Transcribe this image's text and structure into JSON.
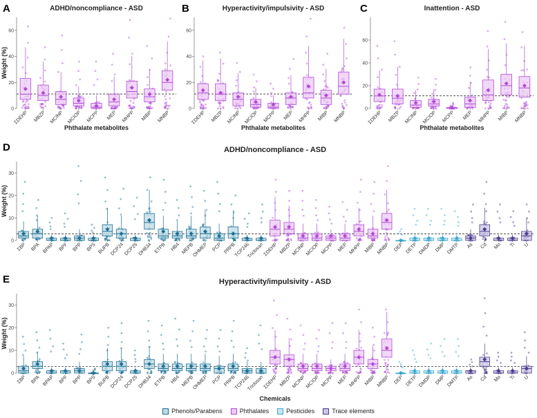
{
  "groups": [
    {
      "name": "Phenols/Parabens",
      "color": "#1a6e94",
      "fill": "#bfdbe6"
    },
    {
      "name": "Phthalates",
      "color": "#b14ad6",
      "fill": "#ecc9f5"
    },
    {
      "name": "Pesticides",
      "color": "#3aa8d2",
      "fill": "#c4e6f2"
    },
    {
      "name": "Trace elements",
      "color": "#4b3a8c",
      "fill": "#cbc5e4"
    }
  ],
  "chart_data": [
    {
      "panel": "A",
      "type": "boxplot",
      "title": "ADHD/noncompliance - ASD",
      "xlabel": "Phthalate metabolites",
      "ylabel": "Weight (%)",
      "ylim": [
        0,
        70
      ],
      "yticks": [
        0,
        20,
        40,
        60
      ],
      "reference_line": 11.1,
      "categories": [
        "ΣDEHP",
        "MBZP",
        "MCINP",
        "MCIOP",
        "MCPP",
        "MEP",
        "MHPP",
        "MIBP",
        "MNBP"
      ],
      "group": [
        1,
        1,
        1,
        1,
        1,
        1,
        1,
        1,
        1
      ],
      "q1": [
        7,
        6,
        3,
        2,
        0,
        2,
        8,
        5,
        14
      ],
      "median": [
        11,
        10,
        7,
        4,
        1,
        5,
        13,
        9,
        20
      ],
      "q3": [
        23,
        18,
        13,
        8,
        4,
        11,
        21,
        15,
        29
      ],
      "mean": [
        15,
        12,
        9,
        6,
        2,
        7,
        16,
        11,
        22
      ],
      "max": [
        63,
        47,
        56,
        36,
        36,
        42,
        68,
        48,
        69
      ]
    },
    {
      "panel": "B",
      "type": "boxplot",
      "title": "Hyperactivity/impulsivity - ASD",
      "xlabel": "Phthalate metabolites",
      "ylabel": "",
      "ylim": [
        0,
        70
      ],
      "yticks": [
        0,
        20,
        40,
        60
      ],
      "reference_line": 11.1,
      "categories": [
        "ΣDEHP",
        "MBZP",
        "MCINP",
        "MCIOP",
        "MCPP",
        "MEP",
        "MHPP",
        "MIBP",
        "MNBP"
      ],
      "group": [
        1,
        1,
        1,
        1,
        1,
        1,
        1,
        1,
        1
      ],
      "q1": [
        7,
        6,
        2,
        1,
        0,
        3,
        8,
        3,
        11
      ],
      "median": [
        12,
        11,
        7,
        3,
        1,
        8,
        12,
        8,
        17
      ],
      "q3": [
        19,
        19,
        12,
        7,
        4,
        12,
        24,
        14,
        28
      ],
      "mean": [
        14,
        12,
        9,
        5,
        3,
        9,
        17,
        10,
        20
      ],
      "max": [
        40,
        43,
        35,
        26,
        19,
        38,
        69,
        42,
        62
      ]
    },
    {
      "panel": "C",
      "type": "boxplot",
      "title": "Inattention - ASD",
      "xlabel": "Phthalate metabolites",
      "ylabel": "",
      "ylim": [
        0,
        80
      ],
      "yticks": [
        0,
        20,
        40,
        60
      ],
      "reference_line": 11.1,
      "categories": [
        "ΣDEHP",
        "MBZP",
        "MCINP",
        "MCIOP",
        "MCPP",
        "MEP",
        "MHPP",
        "MIBP",
        "MNBP"
      ],
      "group": [
        1,
        1,
        1,
        1,
        1,
        1,
        1,
        1,
        1
      ],
      "q1": [
        6,
        4,
        1,
        2,
        0,
        1,
        7,
        12,
        10
      ],
      "median": [
        11,
        9,
        3,
        4,
        0,
        4,
        12,
        20,
        18
      ],
      "q3": [
        17,
        17,
        7,
        8,
        1,
        10,
        25,
        30,
        28
      ],
      "mean": [
        12,
        11,
        5,
        6,
        1,
        7,
        16,
        22,
        20
      ],
      "max": [
        55,
        59,
        27,
        26,
        5,
        36,
        68,
        76,
        67
      ]
    },
    {
      "panel": "D",
      "type": "boxplot",
      "title": "ADHD/noncompliance - ASD",
      "xlabel": "",
      "ylabel": "Weight (%)",
      "ylim": [
        0,
        35
      ],
      "yticks": [
        0,
        10,
        20,
        30
      ],
      "reference_line": 2.9,
      "categories": [
        "ΣBP",
        "BPA",
        "BPAP",
        "BPF",
        "BPP",
        "BPS",
        "BUPB",
        "DCP24",
        "DCP25",
        "DHB34",
        "ETPB",
        "HB4",
        "MEPB",
        "OHMEP",
        "PCP",
        "PRPB",
        "TCP246",
        "Triclosan",
        "ΣDEHP",
        "MBZP",
        "MCINP",
        "MCIOP",
        "MCPP",
        "MEP",
        "MHPP",
        "MIBP",
        "MNBP",
        "DEP",
        "DETP",
        "DMDP",
        "DMP",
        "DMTP",
        "As",
        "Cd",
        "Mo",
        "Ti",
        "U"
      ],
      "group": [
        0,
        0,
        0,
        0,
        0,
        0,
        0,
        0,
        0,
        0,
        0,
        0,
        0,
        0,
        0,
        0,
        0,
        0,
        1,
        1,
        1,
        1,
        1,
        1,
        1,
        1,
        1,
        2,
        2,
        2,
        2,
        2,
        3,
        3,
        3,
        3,
        3
      ],
      "q1": [
        1,
        1,
        0,
        0,
        0,
        0,
        2,
        1,
        0,
        5,
        1,
        1,
        1,
        1,
        0,
        1,
        0,
        0,
        2,
        3,
        0,
        0,
        0,
        0,
        2,
        1,
        5,
        0,
        0,
        0,
        0,
        0,
        0,
        2,
        0,
        0,
        0
      ],
      "median": [
        2,
        3,
        0,
        0,
        1,
        0,
        4,
        3,
        0,
        8,
        2,
        2,
        2,
        3,
        1,
        3,
        0,
        0,
        5,
        5,
        1,
        1,
        1,
        1,
        4,
        2,
        8,
        0,
        0,
        0,
        0,
        0,
        1,
        4,
        0,
        0,
        2
      ],
      "q3": [
        4,
        5,
        1,
        1,
        2,
        1,
        7,
        5,
        1,
        12,
        5,
        4,
        5,
        6,
        3,
        6,
        1,
        1,
        9,
        8,
        3,
        3,
        2,
        3,
        7,
        5,
        12,
        0,
        1,
        1,
        1,
        1,
        2,
        7,
        1,
        1,
        4
      ],
      "mean": [
        3,
        4,
        1,
        1,
        1,
        1,
        5,
        3,
        1,
        9,
        4,
        3,
        3,
        4,
        2,
        3,
        1,
        1,
        6,
        6,
        2,
        2,
        2,
        2,
        5,
        3,
        9,
        0,
        1,
        1,
        1,
        1,
        1,
        5,
        1,
        1,
        3
      ],
      "max": [
        26,
        18,
        10,
        12,
        33,
        7,
        28,
        23,
        19,
        28,
        27,
        18,
        24,
        22,
        26,
        20,
        12,
        16,
        27,
        22,
        22,
        18,
        15,
        17,
        27,
        26,
        33,
        5,
        14,
        14,
        14,
        13,
        16,
        26,
        16,
        13,
        16
      ]
    },
    {
      "panel": "E",
      "type": "boxplot",
      "title": "Hyperactivity/impulsivity - ASD",
      "xlabel": "Chemicals",
      "ylabel": "Weight (%)",
      "ylim": [
        0,
        35
      ],
      "yticks": [
        0,
        10,
        20,
        30
      ],
      "reference_line": 2.9,
      "categories": [
        "ΣBP",
        "BPA",
        "BPAP",
        "BPF",
        "BPP",
        "BPS",
        "BUPB",
        "DCP24",
        "DCP25",
        "DHB34",
        "ETPB",
        "HB4",
        "MEPB",
        "OHMEP",
        "PCP",
        "PRPB",
        "TCP246",
        "Triclosan",
        "ΣDEHP",
        "MBZP",
        "MCINP",
        "MCIOP",
        "MCPP",
        "MEP",
        "MHPP",
        "MIBP",
        "MNBP",
        "DEP",
        "DETP",
        "DMDP",
        "DMP",
        "DMTP",
        "As",
        "Cd",
        "Mo",
        "Ti",
        "U"
      ],
      "group": [
        0,
        0,
        0,
        0,
        0,
        0,
        0,
        0,
        0,
        0,
        0,
        0,
        0,
        0,
        0,
        0,
        0,
        0,
        1,
        1,
        1,
        1,
        1,
        1,
        1,
        1,
        1,
        2,
        2,
        2,
        2,
        2,
        3,
        3,
        3,
        3,
        3
      ],
      "q1": [
        0,
        2,
        0,
        0,
        0,
        0,
        1,
        1,
        0,
        2,
        1,
        1,
        1,
        1,
        0,
        1,
        0,
        0,
        4,
        3,
        1,
        1,
        1,
        1,
        4,
        2,
        7,
        0,
        0,
        0,
        0,
        0,
        0,
        3,
        0,
        0,
        0
      ],
      "median": [
        1,
        3,
        0,
        1,
        1,
        0,
        3,
        3,
        0,
        4,
        2,
        2,
        2,
        2,
        2,
        2,
        1,
        0,
        7,
        6,
        2,
        2,
        2,
        2,
        7,
        4,
        10,
        0,
        0,
        0,
        0,
        0,
        1,
        5,
        0,
        0,
        2
      ],
      "q3": [
        3,
        5,
        1,
        1,
        2,
        0,
        5,
        5,
        1,
        6,
        4,
        4,
        4,
        4,
        3,
        4,
        2,
        2,
        10,
        8,
        4,
        4,
        3,
        4,
        10,
        6,
        15,
        0,
        1,
        1,
        1,
        1,
        1,
        7,
        1,
        1,
        3
      ],
      "mean": [
        2,
        4,
        1,
        1,
        1,
        0,
        4,
        4,
        1,
        4,
        3,
        3,
        3,
        3,
        2,
        3,
        1,
        1,
        7,
        6,
        3,
        3,
        2,
        3,
        7,
        4,
        11,
        0,
        1,
        1,
        1,
        1,
        1,
        6,
        1,
        1,
        2
      ],
      "max": [
        16,
        18,
        19,
        13,
        17,
        2,
        20,
        22,
        10,
        23,
        21,
        24,
        23,
        19,
        19,
        23,
        11,
        21,
        32,
        24,
        21,
        19,
        22,
        22,
        28,
        20,
        28,
        5,
        10,
        13,
        15,
        15,
        6,
        33,
        9,
        9,
        18
      ]
    }
  ]
}
